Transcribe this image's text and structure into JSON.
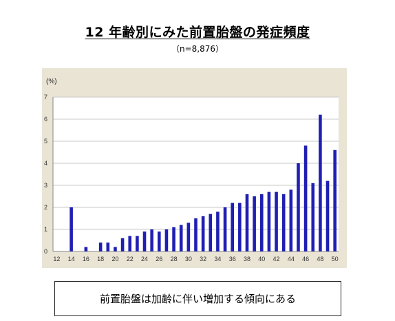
{
  "header": {
    "title": "12 年齢別にみた前置胎盤の発症頻度",
    "subtitle": "（n=8,876）"
  },
  "conclusion_text": "前置胎盤は加齢に伴い増加する傾向にある",
  "colors": {
    "bar": "#1f1fb3",
    "plot_bg": "#ffffff",
    "frame_bg": "#e9e4d4",
    "grid": "#c8c8c8"
  },
  "chart_data": {
    "type": "bar",
    "title": "",
    "ylabel": "(%)",
    "xlabel": "",
    "ylim": [
      0,
      7
    ],
    "yticks": [
      0,
      1,
      2,
      3,
      4,
      5,
      6,
      7
    ],
    "xlim": [
      12,
      50
    ],
    "xticks": [
      12,
      14,
      16,
      18,
      20,
      22,
      24,
      26,
      28,
      30,
      32,
      34,
      36,
      38,
      40,
      42,
      44,
      46,
      48,
      50
    ],
    "grid": true,
    "categories": [
      12,
      13,
      14,
      15,
      16,
      17,
      18,
      19,
      20,
      21,
      22,
      23,
      24,
      25,
      26,
      27,
      28,
      29,
      30,
      31,
      32,
      33,
      34,
      35,
      36,
      37,
      38,
      39,
      40,
      41,
      42,
      43,
      44,
      45,
      46,
      47,
      48,
      49,
      50
    ],
    "values": [
      0,
      0,
      2.0,
      0,
      0.2,
      0,
      0.4,
      0.4,
      0.2,
      0.6,
      0.7,
      0.7,
      0.9,
      1.0,
      0.9,
      1.0,
      1.1,
      1.2,
      1.3,
      1.5,
      1.6,
      1.7,
      1.8,
      2.0,
      2.2,
      2.2,
      2.6,
      2.5,
      2.6,
      2.7,
      2.7,
      2.6,
      2.8,
      4.0,
      4.8,
      3.1,
      6.2,
      3.2,
      4.6
    ]
  }
}
